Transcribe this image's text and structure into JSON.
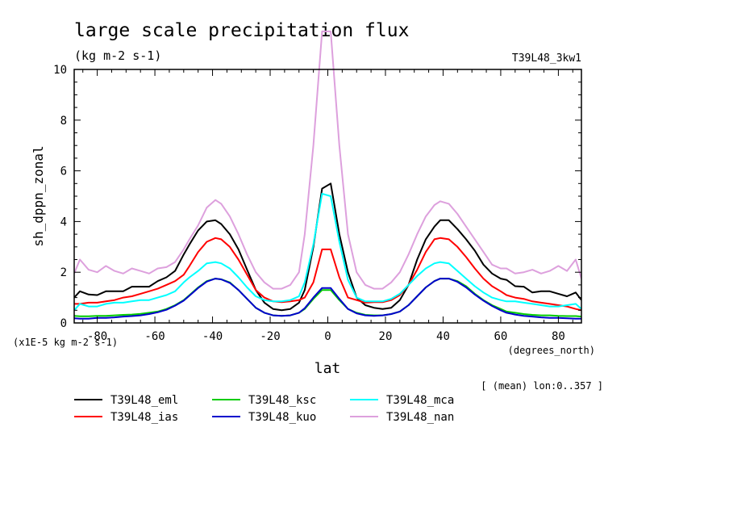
{
  "chart_data": {
    "type": "line",
    "title": "large scale precipitation flux",
    "subtitle": "(kg m-2 s-1)",
    "run_label": "T39L48_3kw1",
    "xlabel": "lat",
    "x_units": "(degrees_north)",
    "ylabel": "sh_dppn_zonal",
    "y_multiplier": "(x1E-5 kg m-2 s-1)",
    "footnote": "[ (mean) lon:0..357 ]",
    "xlim": [
      -88,
      88
    ],
    "ylim": [
      0,
      10
    ],
    "x_ticks": [
      -80,
      -60,
      -40,
      -20,
      0,
      20,
      40,
      60,
      80
    ],
    "x_tick_labels": [
      "-80",
      "-60",
      "-40",
      "-20",
      "0",
      "20",
      "40",
      "60",
      "80"
    ],
    "y_ticks": [
      0,
      2,
      4,
      6,
      8,
      10
    ],
    "y_tick_labels": [
      "0",
      "2",
      "4",
      "6",
      "8",
      "10"
    ],
    "x": [
      -88,
      -86,
      -83,
      -80,
      -77,
      -74,
      -71,
      -68,
      -65,
      -62,
      -59,
      -56,
      -53,
      -50,
      -48,
      -45,
      -42,
      -39,
      -37,
      -34,
      -31,
      -28,
      -25,
      -22,
      -19,
      -16,
      -13,
      -10,
      -8,
      -5,
      -2,
      1,
      4,
      7,
      10,
      13,
      16,
      19,
      22,
      25,
      28,
      31,
      34,
      37,
      39,
      42,
      45,
      48,
      51,
      54,
      57,
      60,
      62,
      65,
      68,
      71,
      74,
      77,
      80,
      83,
      86,
      88
    ],
    "series": [
      {
        "name": "T39L48_eml",
        "color": "#000000",
        "values": [
          1.0,
          1.25,
          1.12,
          1.1,
          1.25,
          1.25,
          1.25,
          1.43,
          1.43,
          1.43,
          1.65,
          1.8,
          2.05,
          2.7,
          3.1,
          3.65,
          4.0,
          4.05,
          3.9,
          3.5,
          2.9,
          2.1,
          1.3,
          0.8,
          0.55,
          0.5,
          0.55,
          0.8,
          1.3,
          3.0,
          5.3,
          5.5,
          3.5,
          2.0,
          1.0,
          0.7,
          0.6,
          0.55,
          0.6,
          0.9,
          1.5,
          2.5,
          3.3,
          3.8,
          4.05,
          4.05,
          3.7,
          3.3,
          2.85,
          2.3,
          1.95,
          1.75,
          1.7,
          1.45,
          1.43,
          1.2,
          1.25,
          1.25,
          1.15,
          1.05,
          1.2,
          0.9
        ]
      },
      {
        "name": "T39L48_ias",
        "color": "#ff0000",
        "values": [
          0.75,
          0.75,
          0.8,
          0.8,
          0.85,
          0.9,
          1.0,
          1.05,
          1.15,
          1.25,
          1.35,
          1.5,
          1.65,
          1.9,
          2.25,
          2.8,
          3.2,
          3.35,
          3.3,
          3.0,
          2.5,
          1.9,
          1.3,
          1.0,
          0.85,
          0.82,
          0.85,
          0.9,
          1.0,
          1.6,
          2.9,
          2.9,
          1.8,
          1.0,
          0.9,
          0.8,
          0.82,
          0.82,
          0.9,
          1.1,
          1.5,
          2.1,
          2.8,
          3.3,
          3.35,
          3.3,
          3.0,
          2.6,
          2.15,
          1.75,
          1.45,
          1.25,
          1.1,
          1.0,
          0.95,
          0.85,
          0.8,
          0.75,
          0.7,
          0.65,
          0.55,
          0.5
        ]
      },
      {
        "name": "T39L48_ksc",
        "color": "#00cc00",
        "values": [
          0.28,
          0.26,
          0.26,
          0.28,
          0.28,
          0.3,
          0.32,
          0.33,
          0.36,
          0.4,
          0.45,
          0.55,
          0.7,
          0.9,
          1.1,
          1.4,
          1.65,
          1.75,
          1.72,
          1.6,
          1.3,
          0.95,
          0.6,
          0.4,
          0.3,
          0.28,
          0.3,
          0.4,
          0.55,
          0.95,
          1.3,
          1.3,
          0.9,
          0.55,
          0.4,
          0.32,
          0.3,
          0.3,
          0.35,
          0.45,
          0.7,
          1.05,
          1.4,
          1.65,
          1.75,
          1.75,
          1.65,
          1.45,
          1.15,
          0.9,
          0.7,
          0.55,
          0.45,
          0.4,
          0.35,
          0.32,
          0.3,
          0.3,
          0.28,
          0.27,
          0.27,
          0.25
        ]
      },
      {
        "name": "T39L48_kuo",
        "color": "#0000cc",
        "values": [
          0.18,
          0.17,
          0.17,
          0.2,
          0.2,
          0.22,
          0.25,
          0.27,
          0.3,
          0.35,
          0.42,
          0.52,
          0.68,
          0.88,
          1.08,
          1.38,
          1.63,
          1.75,
          1.72,
          1.58,
          1.3,
          0.95,
          0.6,
          0.4,
          0.3,
          0.28,
          0.3,
          0.4,
          0.58,
          1.0,
          1.38,
          1.38,
          0.95,
          0.55,
          0.38,
          0.3,
          0.28,
          0.3,
          0.35,
          0.45,
          0.7,
          1.05,
          1.4,
          1.65,
          1.75,
          1.75,
          1.62,
          1.4,
          1.12,
          0.88,
          0.67,
          0.5,
          0.4,
          0.33,
          0.28,
          0.25,
          0.22,
          0.2,
          0.2,
          0.18,
          0.17,
          0.17
        ]
      },
      {
        "name": "T39L48_mca",
        "color": "#00ffff",
        "values": [
          0.5,
          0.75,
          0.65,
          0.65,
          0.75,
          0.8,
          0.8,
          0.85,
          0.9,
          0.9,
          1.0,
          1.1,
          1.25,
          1.6,
          1.8,
          2.05,
          2.35,
          2.4,
          2.35,
          2.15,
          1.8,
          1.4,
          1.05,
          0.9,
          0.85,
          0.85,
          0.9,
          1.05,
          1.6,
          3.1,
          5.1,
          5.0,
          3.2,
          1.7,
          1.0,
          0.85,
          0.85,
          0.85,
          0.95,
          1.15,
          1.5,
          1.85,
          2.15,
          2.35,
          2.4,
          2.35,
          2.05,
          1.75,
          1.45,
          1.2,
          1.0,
          0.9,
          0.85,
          0.85,
          0.8,
          0.75,
          0.7,
          0.65,
          0.65,
          0.7,
          0.75,
          0.55
        ]
      },
      {
        "name": "T39L48_nan",
        "color": "#dda0dd",
        "values": [
          1.95,
          2.5,
          2.1,
          2.0,
          2.25,
          2.05,
          1.95,
          2.15,
          2.05,
          1.95,
          2.15,
          2.2,
          2.4,
          2.9,
          3.3,
          3.85,
          4.55,
          4.85,
          4.7,
          4.2,
          3.5,
          2.7,
          2.0,
          1.6,
          1.35,
          1.35,
          1.5,
          2.0,
          3.5,
          7.0,
          11.5,
          11.5,
          7.0,
          3.5,
          2.0,
          1.5,
          1.35,
          1.35,
          1.6,
          2.0,
          2.7,
          3.5,
          4.2,
          4.65,
          4.8,
          4.7,
          4.3,
          3.8,
          3.3,
          2.8,
          2.3,
          2.15,
          2.15,
          1.95,
          2.0,
          2.1,
          1.95,
          2.05,
          2.25,
          2.05,
          2.5,
          1.75
        ]
      }
    ]
  }
}
